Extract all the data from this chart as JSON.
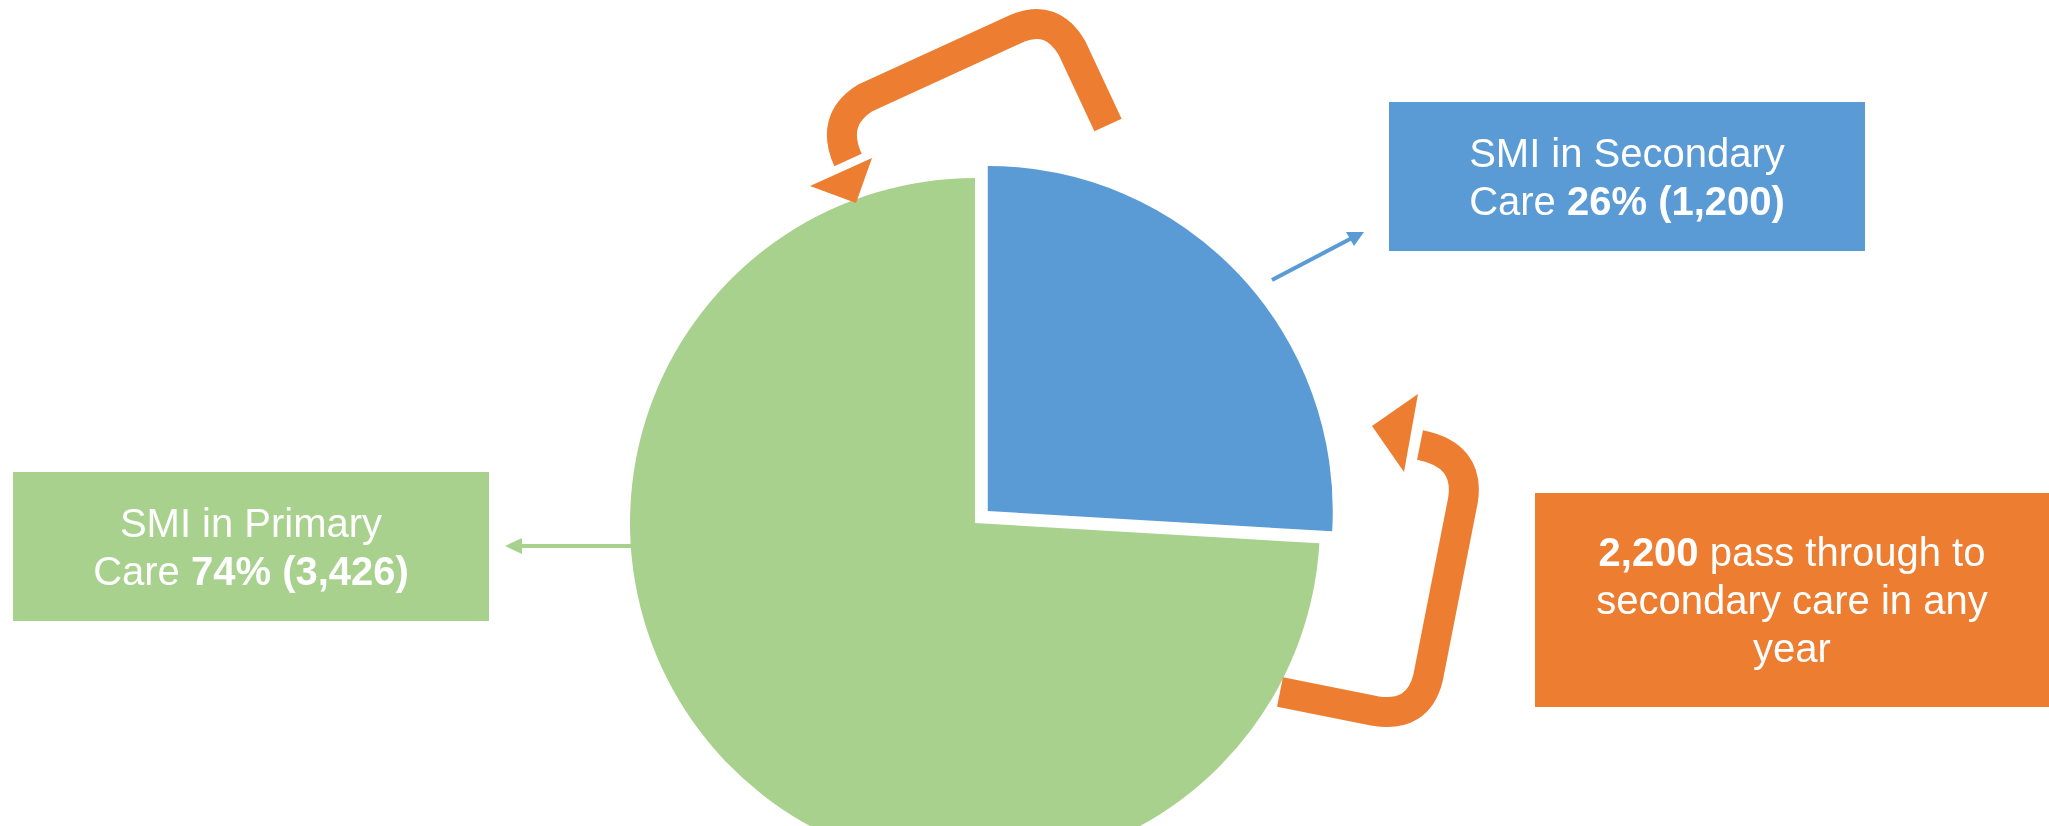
{
  "chart_data": {
    "type": "pie",
    "categories": [
      "SMI in Secondary Care",
      "SMI in Primary Care"
    ],
    "values": [
      1200,
      3426
    ],
    "value_labels": [
      "26% (1,200)",
      "74% (3,426)"
    ],
    "colors": [
      "#5b9bd5",
      "#a9d18e"
    ],
    "annotations": [
      "2,200 pass through to secondary care in any year"
    ],
    "legend": false
  }
}
